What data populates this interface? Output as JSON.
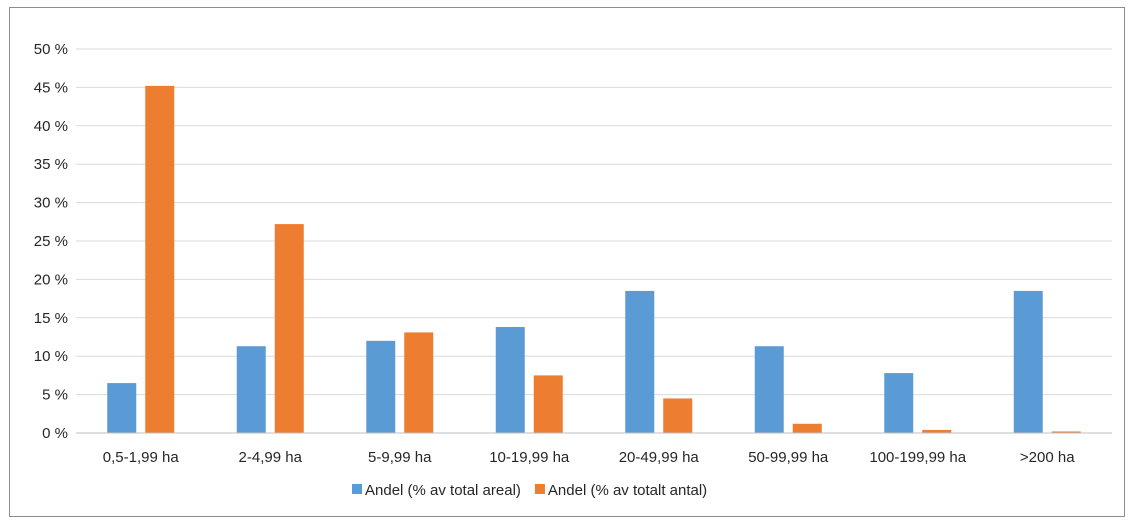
{
  "chart_data": {
    "type": "bar",
    "title": "",
    "xlabel": "",
    "ylabel": "",
    "categories": [
      "0,5-1,99 ha",
      "2-4,99 ha",
      "5-9,99 ha",
      "10-19,99 ha",
      "20-49,99 ha",
      "50-99,99 ha",
      "100-199,99 ha",
      ">200 ha"
    ],
    "series": [
      {
        "name": "Andel (% av total areal)",
        "color": "#5b9bd5",
        "values": [
          6.5,
          11.3,
          12.0,
          13.8,
          18.5,
          11.3,
          7.8,
          18.5
        ]
      },
      {
        "name": "Andel (% av totalt antal)",
        "color": "#ed7d31",
        "values": [
          45.2,
          27.2,
          13.1,
          7.5,
          4.5,
          1.2,
          0.4,
          0.2
        ]
      }
    ],
    "ylim": [
      0,
      50
    ],
    "y_ticks": [
      0,
      5,
      10,
      15,
      20,
      25,
      30,
      35,
      40,
      45,
      50
    ],
    "y_tick_labels": [
      "0 %",
      "5 %",
      "10 %",
      "15 %",
      "20 %",
      "25 %",
      "30 %",
      "35 %",
      "40 %",
      "45 %",
      "50 %"
    ],
    "grid": true,
    "legend_position": "bottom"
  }
}
